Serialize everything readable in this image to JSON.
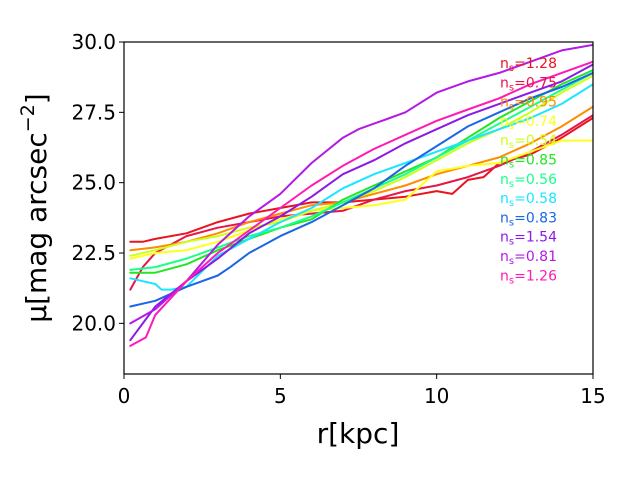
{
  "chart_data": {
    "type": "line",
    "xlabel": "r[kpc]",
    "ylabel_main": "μ[mag arcsec",
    "ylabel_sup": "−2",
    "ylabel_close": "]",
    "xlim": [
      0,
      15
    ],
    "ylim": [
      30.0,
      18.2
    ],
    "y_inverted": true,
    "x_ticks": [
      0,
      5,
      10,
      15
    ],
    "x_tick_labels": [
      "0",
      "5",
      "10",
      "15"
    ],
    "y_ticks": [
      20.0,
      22.5,
      25.0,
      27.5,
      30.0
    ],
    "y_tick_labels": [
      "20.0",
      "22.5",
      "25.0",
      "27.5",
      "30.0"
    ],
    "grid": false,
    "legend_position": "top-right",
    "legend_prefix": "n",
    "legend_sub": "s",
    "series": [
      {
        "name": "1.28",
        "color": "#e8141e",
        "x": [
          0.2,
          0.6,
          1,
          2,
          3,
          4,
          5,
          6,
          7,
          8,
          9,
          10,
          10.5,
          11,
          11.5,
          12,
          13,
          14,
          15
        ],
        "y": [
          22.9,
          22.9,
          23.0,
          23.2,
          23.6,
          23.9,
          24.1,
          24.3,
          24.3,
          24.4,
          24.5,
          24.7,
          24.6,
          25.1,
          25.2,
          25.7,
          26.0,
          26.6,
          27.3
        ]
      },
      {
        "name": "0.75",
        "color": "#e6154a",
        "x": [
          0.2,
          0.6,
          1,
          2,
          3,
          4,
          5,
          6,
          7,
          8,
          9,
          10,
          11,
          12,
          13,
          14,
          15
        ],
        "y": [
          21.2,
          22.0,
          22.5,
          23.1,
          23.4,
          23.6,
          23.8,
          23.9,
          24.0,
          24.4,
          24.7,
          24.9,
          25.2,
          25.6,
          26.1,
          26.7,
          27.4
        ]
      },
      {
        "name": "0.95",
        "color": "#ff8c00",
        "x": [
          0.2,
          1,
          2,
          3,
          4,
          5,
          6,
          7,
          8,
          9,
          10,
          11,
          12,
          13,
          14,
          15
        ],
        "y": [
          22.6,
          22.7,
          22.9,
          23.2,
          23.6,
          23.9,
          24.2,
          24.3,
          24.6,
          24.9,
          25.3,
          25.6,
          25.9,
          26.4,
          27.0,
          27.7
        ]
      },
      {
        "name": "0.74",
        "color": "#ffff1a",
        "x": [
          0.2,
          1,
          2,
          3,
          4,
          5,
          6,
          7,
          8,
          8.5,
          9,
          9.5,
          10,
          11,
          12,
          13,
          14,
          15
        ],
        "y": [
          22.3,
          22.5,
          22.6,
          22.9,
          23.3,
          23.7,
          24.0,
          24.1,
          24.2,
          24.3,
          24.4,
          24.9,
          25.4,
          25.6,
          25.7,
          26.1,
          26.5,
          26.5
        ]
      },
      {
        "name": "0.54",
        "color": "#ccff1a",
        "x": [
          0.2,
          1,
          2,
          3,
          4,
          5,
          6,
          7,
          8,
          9,
          10,
          11,
          12,
          13,
          14,
          15
        ],
        "y": [
          22.4,
          22.6,
          22.9,
          23.1,
          23.4,
          23.6,
          24.0,
          24.3,
          24.7,
          25.2,
          25.8,
          26.4,
          26.9,
          27.5,
          28.2,
          28.8
        ]
      },
      {
        "name": "0.85",
        "color": "#22e622",
        "x": [
          0.2,
          1,
          2,
          3,
          4,
          5,
          6,
          7,
          8,
          9,
          10,
          11,
          12,
          13,
          14,
          15
        ],
        "y": [
          21.8,
          21.8,
          22.1,
          22.6,
          23.0,
          23.4,
          23.7,
          24.4,
          24.9,
          25.4,
          25.9,
          26.6,
          27.3,
          27.9,
          28.5,
          29.0
        ]
      },
      {
        "name": "0.56",
        "color": "#1aff8c",
        "x": [
          0.2,
          1,
          2,
          3,
          4,
          5,
          6,
          7,
          8,
          9,
          10,
          11,
          12,
          13,
          14,
          15
        ],
        "y": [
          21.9,
          22.0,
          22.3,
          22.7,
          23.1,
          23.4,
          23.8,
          24.3,
          24.8,
          25.3,
          25.9,
          26.5,
          27.1,
          27.7,
          28.3,
          28.9
        ]
      },
      {
        "name": "0.58",
        "color": "#1ae6ff",
        "x": [
          0.2,
          0.6,
          1,
          1.2,
          1.5,
          2,
          3,
          4,
          5,
          6,
          7,
          8,
          9,
          10,
          11,
          12,
          13,
          14,
          15
        ],
        "y": [
          21.6,
          21.5,
          21.4,
          21.2,
          21.2,
          21.3,
          22.4,
          23.0,
          23.6,
          24.1,
          24.8,
          25.3,
          25.7,
          26.1,
          26.5,
          26.9,
          27.3,
          27.8,
          28.5
        ]
      },
      {
        "name": "0.83",
        "color": "#1a66e6",
        "x": [
          0.2,
          1,
          2,
          3,
          3.4,
          4,
          5,
          6,
          7,
          8,
          9,
          10,
          11,
          12,
          13,
          14,
          15
        ],
        "y": [
          20.6,
          20.8,
          21.3,
          21.7,
          22.0,
          22.5,
          23.1,
          23.6,
          24.2,
          24.8,
          25.6,
          26.3,
          27.0,
          27.5,
          28.0,
          28.4,
          28.9
        ]
      },
      {
        "name": "1.54",
        "color": "#8c1ae6",
        "x": [
          0.2,
          1,
          2,
          3,
          4,
          5,
          6,
          7,
          8,
          9,
          10,
          11,
          12,
          13,
          14,
          15
        ],
        "y": [
          19.4,
          20.6,
          21.5,
          22.3,
          23.2,
          23.8,
          24.5,
          25.3,
          25.8,
          26.4,
          26.9,
          27.4,
          27.8,
          28.2,
          28.6,
          29.2
        ]
      },
      {
        "name": "0.81",
        "color": "#b31ae6",
        "x": [
          0.2,
          1,
          2,
          3,
          4,
          5,
          6,
          7,
          7.5,
          8,
          8.5,
          9,
          10,
          11,
          12,
          12.5,
          13,
          13.5,
          14,
          14.5,
          15
        ],
        "y": [
          20.0,
          20.5,
          21.5,
          22.8,
          23.8,
          24.6,
          25.7,
          26.6,
          26.9,
          27.1,
          27.3,
          27.5,
          28.2,
          28.6,
          28.9,
          29.1,
          29.3,
          29.5,
          29.7,
          29.8,
          29.9
        ]
      },
      {
        "name": "1.26",
        "color": "#ff1ab3",
        "x": [
          0.2,
          0.7,
          1,
          2,
          3,
          4,
          5,
          6,
          7,
          8,
          9,
          10,
          11,
          12,
          13,
          14,
          15
        ],
        "y": [
          19.2,
          19.5,
          20.3,
          21.5,
          22.5,
          23.3,
          24.1,
          24.9,
          25.6,
          26.2,
          26.7,
          27.2,
          27.6,
          28.0,
          28.5,
          28.9,
          29.3
        ]
      }
    ]
  }
}
